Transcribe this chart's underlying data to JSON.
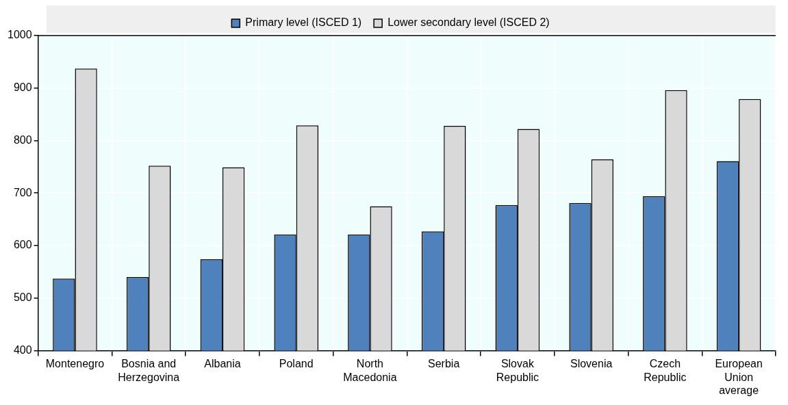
{
  "chart_data": {
    "type": "bar",
    "categories": [
      "Montenegro",
      "Bosnia and Herzegovina",
      "Albania",
      "Poland",
      "North Macedonia",
      "Serbia",
      "Slovak Republic",
      "Slovenia",
      "Czech Republic",
      "European Union average"
    ],
    "series": [
      {
        "name": "Primary level (ISCED 1)",
        "color": "#4f81bd",
        "values": [
          537,
          540,
          574,
          621,
          621,
          627,
          677,
          681,
          694,
          761
        ]
      },
      {
        "name": "Lower secondary level (ISCED 2)",
        "color": "#d9d9d9",
        "values": [
          937,
          752,
          749,
          829,
          675,
          828,
          822,
          764,
          896,
          879
        ]
      }
    ],
    "ylim": [
      400,
      1000
    ],
    "yticks": [
      400,
      500,
      600,
      700,
      800,
      900,
      1000
    ],
    "grid": true,
    "legend": "top"
  }
}
